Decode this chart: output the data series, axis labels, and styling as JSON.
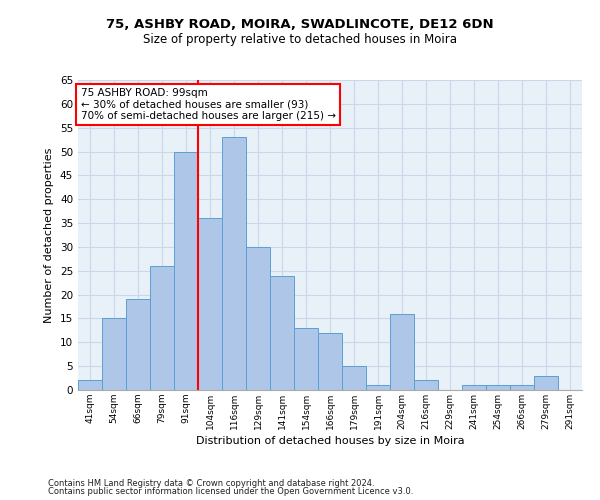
{
  "title1": "75, ASHBY ROAD, MOIRA, SWADLINCOTE, DE12 6DN",
  "title2": "Size of property relative to detached houses in Moira",
  "xlabel": "Distribution of detached houses by size in Moira",
  "ylabel": "Number of detached properties",
  "categories": [
    "41sqm",
    "54sqm",
    "66sqm",
    "79sqm",
    "91sqm",
    "104sqm",
    "116sqm",
    "129sqm",
    "141sqm",
    "154sqm",
    "166sqm",
    "179sqm",
    "191sqm",
    "204sqm",
    "216sqm",
    "229sqm",
    "241sqm",
    "254sqm",
    "266sqm",
    "279sqm",
    "291sqm"
  ],
  "values": [
    2,
    15,
    19,
    26,
    50,
    36,
    53,
    30,
    24,
    13,
    12,
    5,
    1,
    16,
    2,
    0,
    1,
    1,
    1,
    3,
    0
  ],
  "bar_color": "#aec6e8",
  "bar_edge_color": "#5a9fd4",
  "grid_color": "#c8d8e8",
  "background_color": "#e8f0f8",
  "vline_x_index": 4.5,
  "vline_color": "red",
  "annotation_text1": "75 ASHBY ROAD: 99sqm",
  "annotation_text2": "← 30% of detached houses are smaller (93)",
  "annotation_text3": "70% of semi-detached houses are larger (215) →",
  "annotation_box_color": "white",
  "annotation_border_color": "red",
  "footer1": "Contains HM Land Registry data © Crown copyright and database right 2024.",
  "footer2": "Contains public sector information licensed under the Open Government Licence v3.0.",
  "ylim": [
    0,
    65
  ],
  "yticks": [
    0,
    5,
    10,
    15,
    20,
    25,
    30,
    35,
    40,
    45,
    50,
    55,
    60,
    65
  ]
}
